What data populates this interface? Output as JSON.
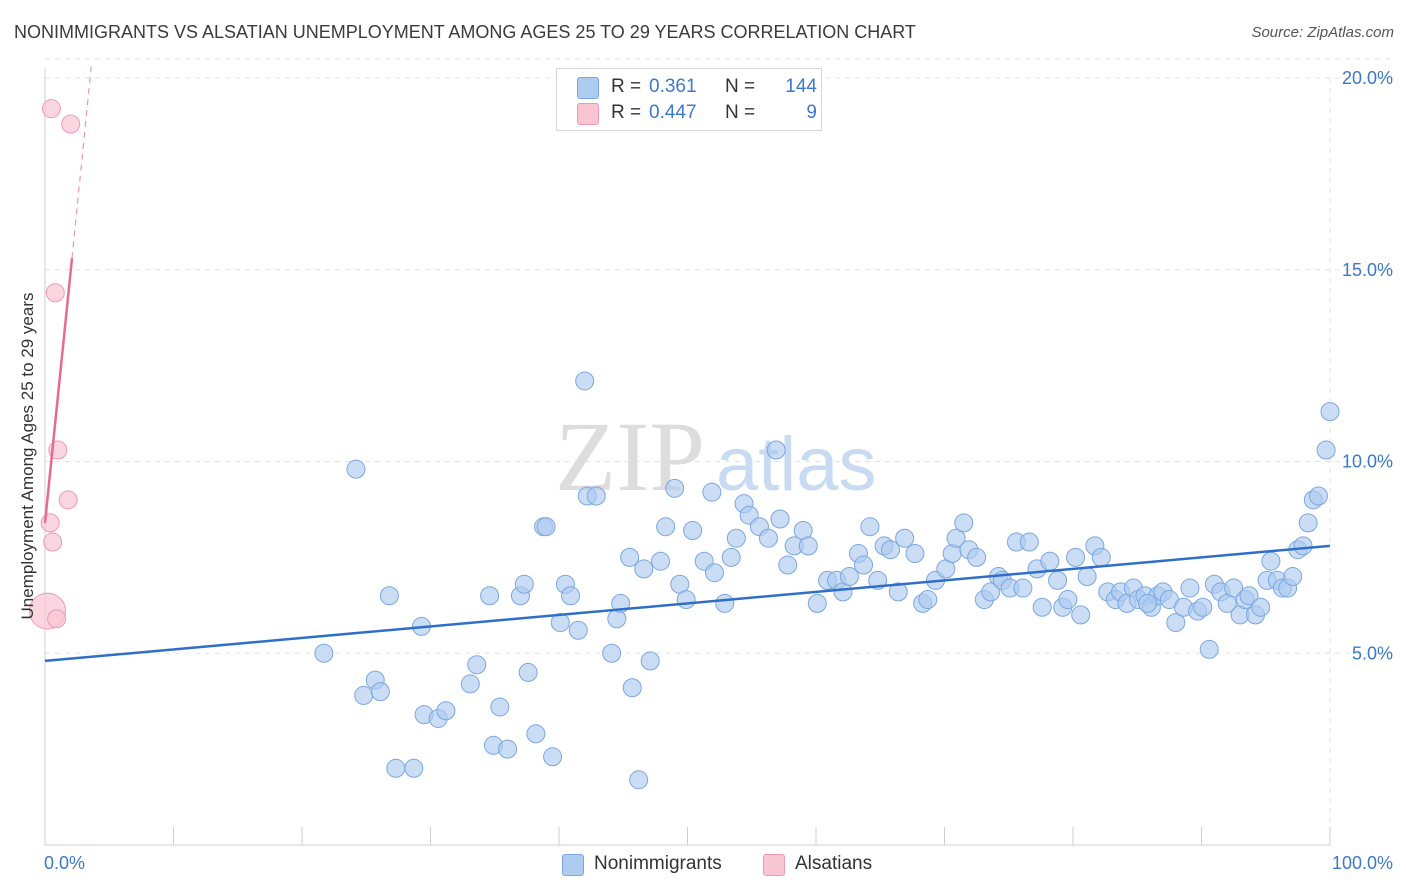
{
  "title": "NONIMMIGRANTS VS ALSATIAN UNEMPLOYMENT AMONG AGES 25 TO 29 YEARS CORRELATION CHART",
  "source": "Source: ZipAtlas.com",
  "watermark": {
    "zip": "ZIP",
    "atlas": "atlas"
  },
  "legend_top": [
    {
      "r_label": "R =",
      "r_value": "0.361",
      "n_label": "N =",
      "n_value": "144",
      "color": "#aecbf0"
    },
    {
      "r_label": "R =",
      "r_value": "0.447",
      "n_label": "N =",
      "n_value": "9",
      "color": "#f8c5d3"
    }
  ],
  "legend_bottom": [
    {
      "label": "Nonimmigrants",
      "color": "#aecbf0"
    },
    {
      "label": "Alsatians",
      "color": "#f8c5d3"
    }
  ],
  "colors": {
    "blue_fill": "#aecbf0",
    "blue_stroke": "#7aa7e0",
    "blue_line": "#2f6fc8",
    "pink_fill": "#f8c5d3",
    "pink_stroke": "#ee9ab4",
    "pink_line": "#e56b94",
    "axis_text": "#3c79c8",
    "grid": "#e3e3e3"
  },
  "chart_data": {
    "type": "scatter",
    "xlabel": "",
    "ylabel": "Unemployment Among Ages 25 to 29 years",
    "xlim": [
      0,
      100
    ],
    "ylim": [
      0,
      20.5
    ],
    "x_tick_labels": [
      "0.0%",
      "100.0%"
    ],
    "y_ticks": [
      5,
      10,
      15,
      20
    ],
    "y_tick_labels": [
      "5.0%",
      "10.0%",
      "15.0%",
      "20.0%"
    ],
    "series": [
      {
        "name": "Nonimmigrants",
        "R": 0.361,
        "N": 144,
        "trend": {
          "x": [
            0,
            100
          ],
          "y": [
            4.8,
            7.8
          ]
        },
        "points": [
          [
            21.7,
            5.0
          ],
          [
            24.2,
            9.8
          ],
          [
            24.8,
            3.9
          ],
          [
            25.7,
            4.3
          ],
          [
            26.1,
            4.0
          ],
          [
            26.8,
            6.5
          ],
          [
            27.3,
            2.0
          ],
          [
            28.7,
            2.0
          ],
          [
            29.3,
            5.7
          ],
          [
            29.5,
            3.4
          ],
          [
            30.6,
            3.3
          ],
          [
            31.2,
            3.5
          ],
          [
            33.1,
            4.2
          ],
          [
            33.6,
            4.7
          ],
          [
            34.6,
            6.5
          ],
          [
            34.9,
            2.6
          ],
          [
            35.4,
            3.6
          ],
          [
            36.0,
            2.5
          ],
          [
            37.0,
            6.5
          ],
          [
            37.3,
            6.8
          ],
          [
            37.6,
            4.5
          ],
          [
            38.2,
            2.9
          ],
          [
            38.8,
            8.3
          ],
          [
            39.0,
            8.3
          ],
          [
            39.5,
            2.3
          ],
          [
            40.1,
            5.8
          ],
          [
            40.5,
            6.8
          ],
          [
            40.9,
            6.5
          ],
          [
            41.5,
            5.6
          ],
          [
            42.0,
            12.1
          ],
          [
            42.2,
            9.1
          ],
          [
            42.9,
            9.1
          ],
          [
            44.1,
            5.0
          ],
          [
            44.5,
            5.9
          ],
          [
            44.8,
            6.3
          ],
          [
            45.5,
            7.5
          ],
          [
            45.7,
            4.1
          ],
          [
            46.2,
            1.7
          ],
          [
            46.6,
            7.2
          ],
          [
            47.1,
            4.8
          ],
          [
            47.9,
            7.4
          ],
          [
            48.3,
            8.3
          ],
          [
            49.0,
            9.3
          ],
          [
            49.4,
            6.8
          ],
          [
            49.9,
            6.4
          ],
          [
            50.4,
            8.2
          ],
          [
            51.3,
            7.4
          ],
          [
            51.9,
            9.2
          ],
          [
            52.1,
            7.1
          ],
          [
            52.9,
            6.3
          ],
          [
            53.4,
            7.5
          ],
          [
            53.8,
            8.0
          ],
          [
            54.4,
            8.9
          ],
          [
            54.8,
            8.6
          ],
          [
            55.6,
            8.3
          ],
          [
            56.3,
            8.0
          ],
          [
            56.9,
            10.3
          ],
          [
            57.2,
            8.5
          ],
          [
            57.8,
            7.3
          ],
          [
            58.3,
            7.8
          ],
          [
            59.0,
            8.2
          ],
          [
            59.4,
            7.8
          ],
          [
            60.1,
            6.3
          ],
          [
            60.9,
            6.9
          ],
          [
            61.6,
            6.9
          ],
          [
            62.1,
            6.6
          ],
          [
            62.6,
            7.0
          ],
          [
            63.3,
            7.6
          ],
          [
            63.7,
            7.3
          ],
          [
            64.2,
            8.3
          ],
          [
            64.8,
            6.9
          ],
          [
            65.3,
            7.8
          ],
          [
            65.8,
            7.7
          ],
          [
            66.4,
            6.6
          ],
          [
            66.9,
            8.0
          ],
          [
            67.7,
            7.6
          ],
          [
            68.3,
            6.3
          ],
          [
            68.7,
            6.4
          ],
          [
            69.3,
            6.9
          ],
          [
            70.1,
            7.2
          ],
          [
            70.6,
            7.6
          ],
          [
            70.9,
            8.0
          ],
          [
            71.5,
            8.4
          ],
          [
            71.9,
            7.7
          ],
          [
            72.5,
            7.5
          ],
          [
            73.1,
            6.4
          ],
          [
            73.6,
            6.6
          ],
          [
            74.2,
            7.0
          ],
          [
            74.5,
            6.9
          ],
          [
            75.1,
            6.7
          ],
          [
            75.6,
            7.9
          ],
          [
            76.1,
            6.7
          ],
          [
            76.6,
            7.9
          ],
          [
            77.2,
            7.2
          ],
          [
            77.6,
            6.2
          ],
          [
            78.2,
            7.4
          ],
          [
            78.8,
            6.9
          ],
          [
            79.2,
            6.2
          ],
          [
            79.6,
            6.4
          ],
          [
            80.2,
            7.5
          ],
          [
            80.6,
            6.0
          ],
          [
            81.1,
            7.0
          ],
          [
            81.7,
            7.8
          ],
          [
            82.2,
            7.5
          ],
          [
            82.7,
            6.6
          ],
          [
            83.3,
            6.4
          ],
          [
            83.7,
            6.6
          ],
          [
            84.2,
            6.3
          ],
          [
            84.7,
            6.7
          ],
          [
            85.1,
            6.4
          ],
          [
            85.6,
            6.5
          ],
          [
            86.1,
            6.2
          ],
          [
            86.6,
            6.5
          ],
          [
            87.0,
            6.6
          ],
          [
            87.5,
            6.4
          ],
          [
            88.0,
            5.8
          ],
          [
            88.6,
            6.2
          ],
          [
            89.1,
            6.7
          ],
          [
            89.7,
            6.1
          ],
          [
            90.1,
            6.2
          ],
          [
            90.6,
            5.1
          ],
          [
            91.0,
            6.8
          ],
          [
            91.5,
            6.6
          ],
          [
            92.0,
            6.3
          ],
          [
            92.5,
            6.7
          ],
          [
            93.0,
            6.0
          ],
          [
            93.4,
            6.4
          ],
          [
            93.7,
            6.5
          ],
          [
            94.2,
            6.0
          ],
          [
            94.6,
            6.2
          ],
          [
            95.1,
            6.9
          ],
          [
            95.4,
            7.4
          ],
          [
            95.9,
            6.9
          ],
          [
            96.3,
            6.7
          ],
          [
            96.7,
            6.7
          ],
          [
            97.1,
            7.0
          ],
          [
            97.5,
            7.7
          ],
          [
            97.9,
            7.8
          ],
          [
            98.3,
            8.4
          ],
          [
            98.7,
            9.0
          ],
          [
            99.1,
            9.1
          ],
          [
            99.7,
            10.3
          ],
          [
            100.0,
            11.3
          ],
          [
            85.8,
            6.3
          ]
        ]
      },
      {
        "name": "Alsatians",
        "R": 0.447,
        "N": 9,
        "trend": {
          "x": [
            0,
            2.1
          ],
          "y": [
            8.4,
            15.3
          ]
        },
        "trend_dashed": {
          "x": [
            2.1,
            3.6
          ],
          "y": [
            15.3,
            20.3
          ]
        },
        "points": [
          [
            0.5,
            19.2
          ],
          [
            2.0,
            18.8
          ],
          [
            0.8,
            14.4
          ],
          [
            1.0,
            10.3
          ],
          [
            1.8,
            9.0
          ],
          [
            0.4,
            8.4
          ],
          [
            0.6,
            7.9
          ],
          [
            0.2,
            6.1
          ],
          [
            0.9,
            5.9
          ]
        ]
      }
    ]
  }
}
